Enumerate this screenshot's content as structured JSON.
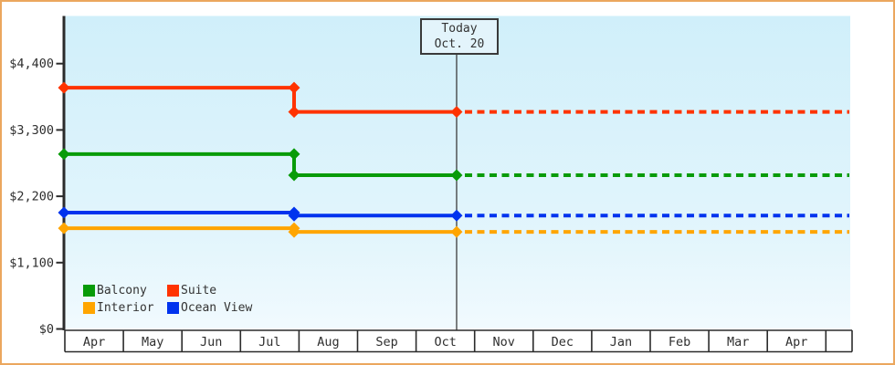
{
  "frame": {
    "border_color": "#EBA75E"
  },
  "today_box": {
    "line1": "Today",
    "line2": "Oct. 20"
  },
  "legend": [
    {
      "label": "Balcony",
      "color": "#089B08"
    },
    {
      "label": "Suite",
      "color": "#FF3300"
    },
    {
      "label": "Interior",
      "color": "#FFA500"
    },
    {
      "label": "Ocean View",
      "color": "#0033EE"
    }
  ],
  "chart_data": {
    "type": "line",
    "title": "",
    "xlabel": "",
    "ylabel": "",
    "y_ticks": [
      {
        "label": "$0",
        "value": 0
      },
      {
        "label": "$1,100",
        "value": 1100
      },
      {
        "label": "$2,200",
        "value": 2200
      },
      {
        "label": "$3,300",
        "value": 3300
      },
      {
        "label": "$4,400",
        "value": 4400
      }
    ],
    "ylim": [
      0,
      5190
    ],
    "months": [
      "Apr",
      "May",
      "Jun",
      "Jul",
      "Aug",
      "Sep",
      "Oct",
      "Nov",
      "Dec",
      "Jan",
      "Feb",
      "Mar",
      "Apr"
    ],
    "today": {
      "line1": "Today",
      "line2": "Oct. 20",
      "x_frac": 0.4994
    },
    "price_drop_x_frac": 0.2927,
    "price_drop_timing": "late July",
    "forecast_style": "dashed",
    "legend_position": "bottom-left",
    "grid": false,
    "series": [
      {
        "name": "Suite",
        "color": "#FF3300",
        "initial_price": 4000,
        "dropped_price": 3600,
        "current_price": 3600
      },
      {
        "name": "Balcony",
        "color": "#089B08",
        "initial_price": 2900,
        "dropped_price": 2550,
        "current_price": 2550
      },
      {
        "name": "Ocean View",
        "color": "#0033EE",
        "initial_price": 1930,
        "dropped_price": 1880,
        "current_price": 1880
      },
      {
        "name": "Interior",
        "color": "#FFA500",
        "initial_price": 1670,
        "dropped_price": 1610,
        "current_price": 1610
      }
    ]
  }
}
